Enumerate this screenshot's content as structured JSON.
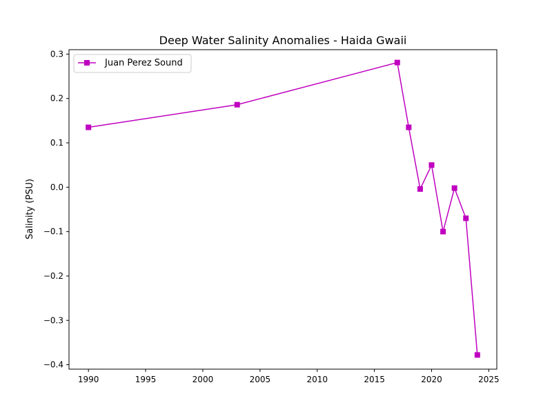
{
  "chart_data": {
    "type": "line",
    "title": "Deep Water Salinity Anomalies - Haida Gwaii",
    "xlabel": "",
    "ylabel": "Salinity (PSU)",
    "xlim": [
      1988.3,
      2025.7
    ],
    "ylim": [
      -0.41,
      0.31
    ],
    "xticks": [
      1990,
      1995,
      2000,
      2005,
      2010,
      2015,
      2020,
      2025
    ],
    "yticks": [
      0.3,
      0.2,
      0.1,
      0.0,
      -0.1,
      -0.2,
      -0.3,
      -0.4
    ],
    "xtick_labels": [
      "1990",
      "1995",
      "2000",
      "2005",
      "2010",
      "2015",
      "2020",
      "2025"
    ],
    "ytick_labels": [
      "0.3",
      "0.2",
      "0.1",
      "0.0",
      "−0.1",
      "−0.2",
      "−0.3",
      "−0.4"
    ],
    "grid": false,
    "legend_position": "upper-left",
    "series": [
      {
        "name": "Juan Perez Sound",
        "color": "#bf00bf",
        "marker": "square",
        "x": [
          1990,
          2003,
          2017,
          2018,
          2019,
          2020,
          2021,
          2022,
          2023,
          2024
        ],
        "y": [
          0.135,
          0.186,
          0.281,
          0.135,
          -0.004,
          0.05,
          -0.1,
          -0.002,
          -0.07,
          -0.378
        ]
      }
    ]
  }
}
